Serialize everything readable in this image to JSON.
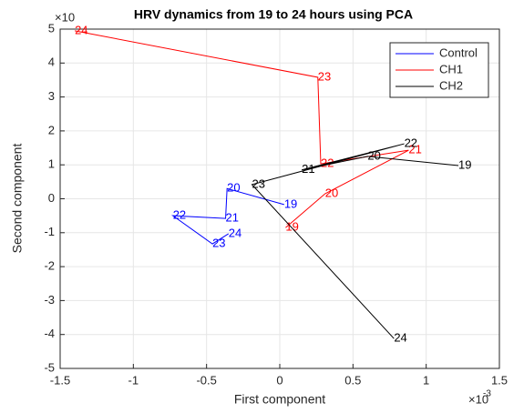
{
  "chart_data": {
    "type": "line",
    "title": "HRV dynamics from 19 to 24 hours using PCA",
    "x_label": "First component",
    "y_label": "Second component",
    "x_multiplier": "×10",
    "x_exponent": "-3",
    "y_multiplier": "×10",
    "xlim": [
      -1.5,
      1.5
    ],
    "xticks": [
      -1.5,
      -1,
      -0.5,
      0,
      0.5,
      1,
      1.5
    ],
    "ylim": [
      -5,
      5
    ],
    "yticks": [
      -5,
      -4,
      -3,
      -2,
      -1,
      0,
      1,
      2,
      3,
      4,
      5
    ],
    "grid": true,
    "legend": "top-right",
    "point_labels": [
      "19",
      "20",
      "21",
      "22",
      "23",
      "24"
    ],
    "series": [
      {
        "name": "Control",
        "color": "#0000ff",
        "x": [
          0.03,
          -0.36,
          -0.37,
          -0.73,
          -0.46,
          -0.35
        ],
        "values": [
          -0.17,
          0.3,
          -0.58,
          -0.5,
          -1.33,
          -1.03
        ]
      },
      {
        "name": "CH1",
        "color": "#ff0000",
        "x": [
          0.04,
          0.31,
          0.88,
          0.28,
          0.26,
          -1.4
        ],
        "values": [
          -0.85,
          0.15,
          1.43,
          1.03,
          3.58,
          4.95
        ]
      },
      {
        "name": "CH2",
        "color": "#000000",
        "x": [
          1.22,
          0.6,
          0.15,
          0.85,
          -0.19,
          0.78
        ],
        "values": [
          0.98,
          1.25,
          0.85,
          1.62,
          0.42,
          -4.12
        ]
      }
    ]
  }
}
